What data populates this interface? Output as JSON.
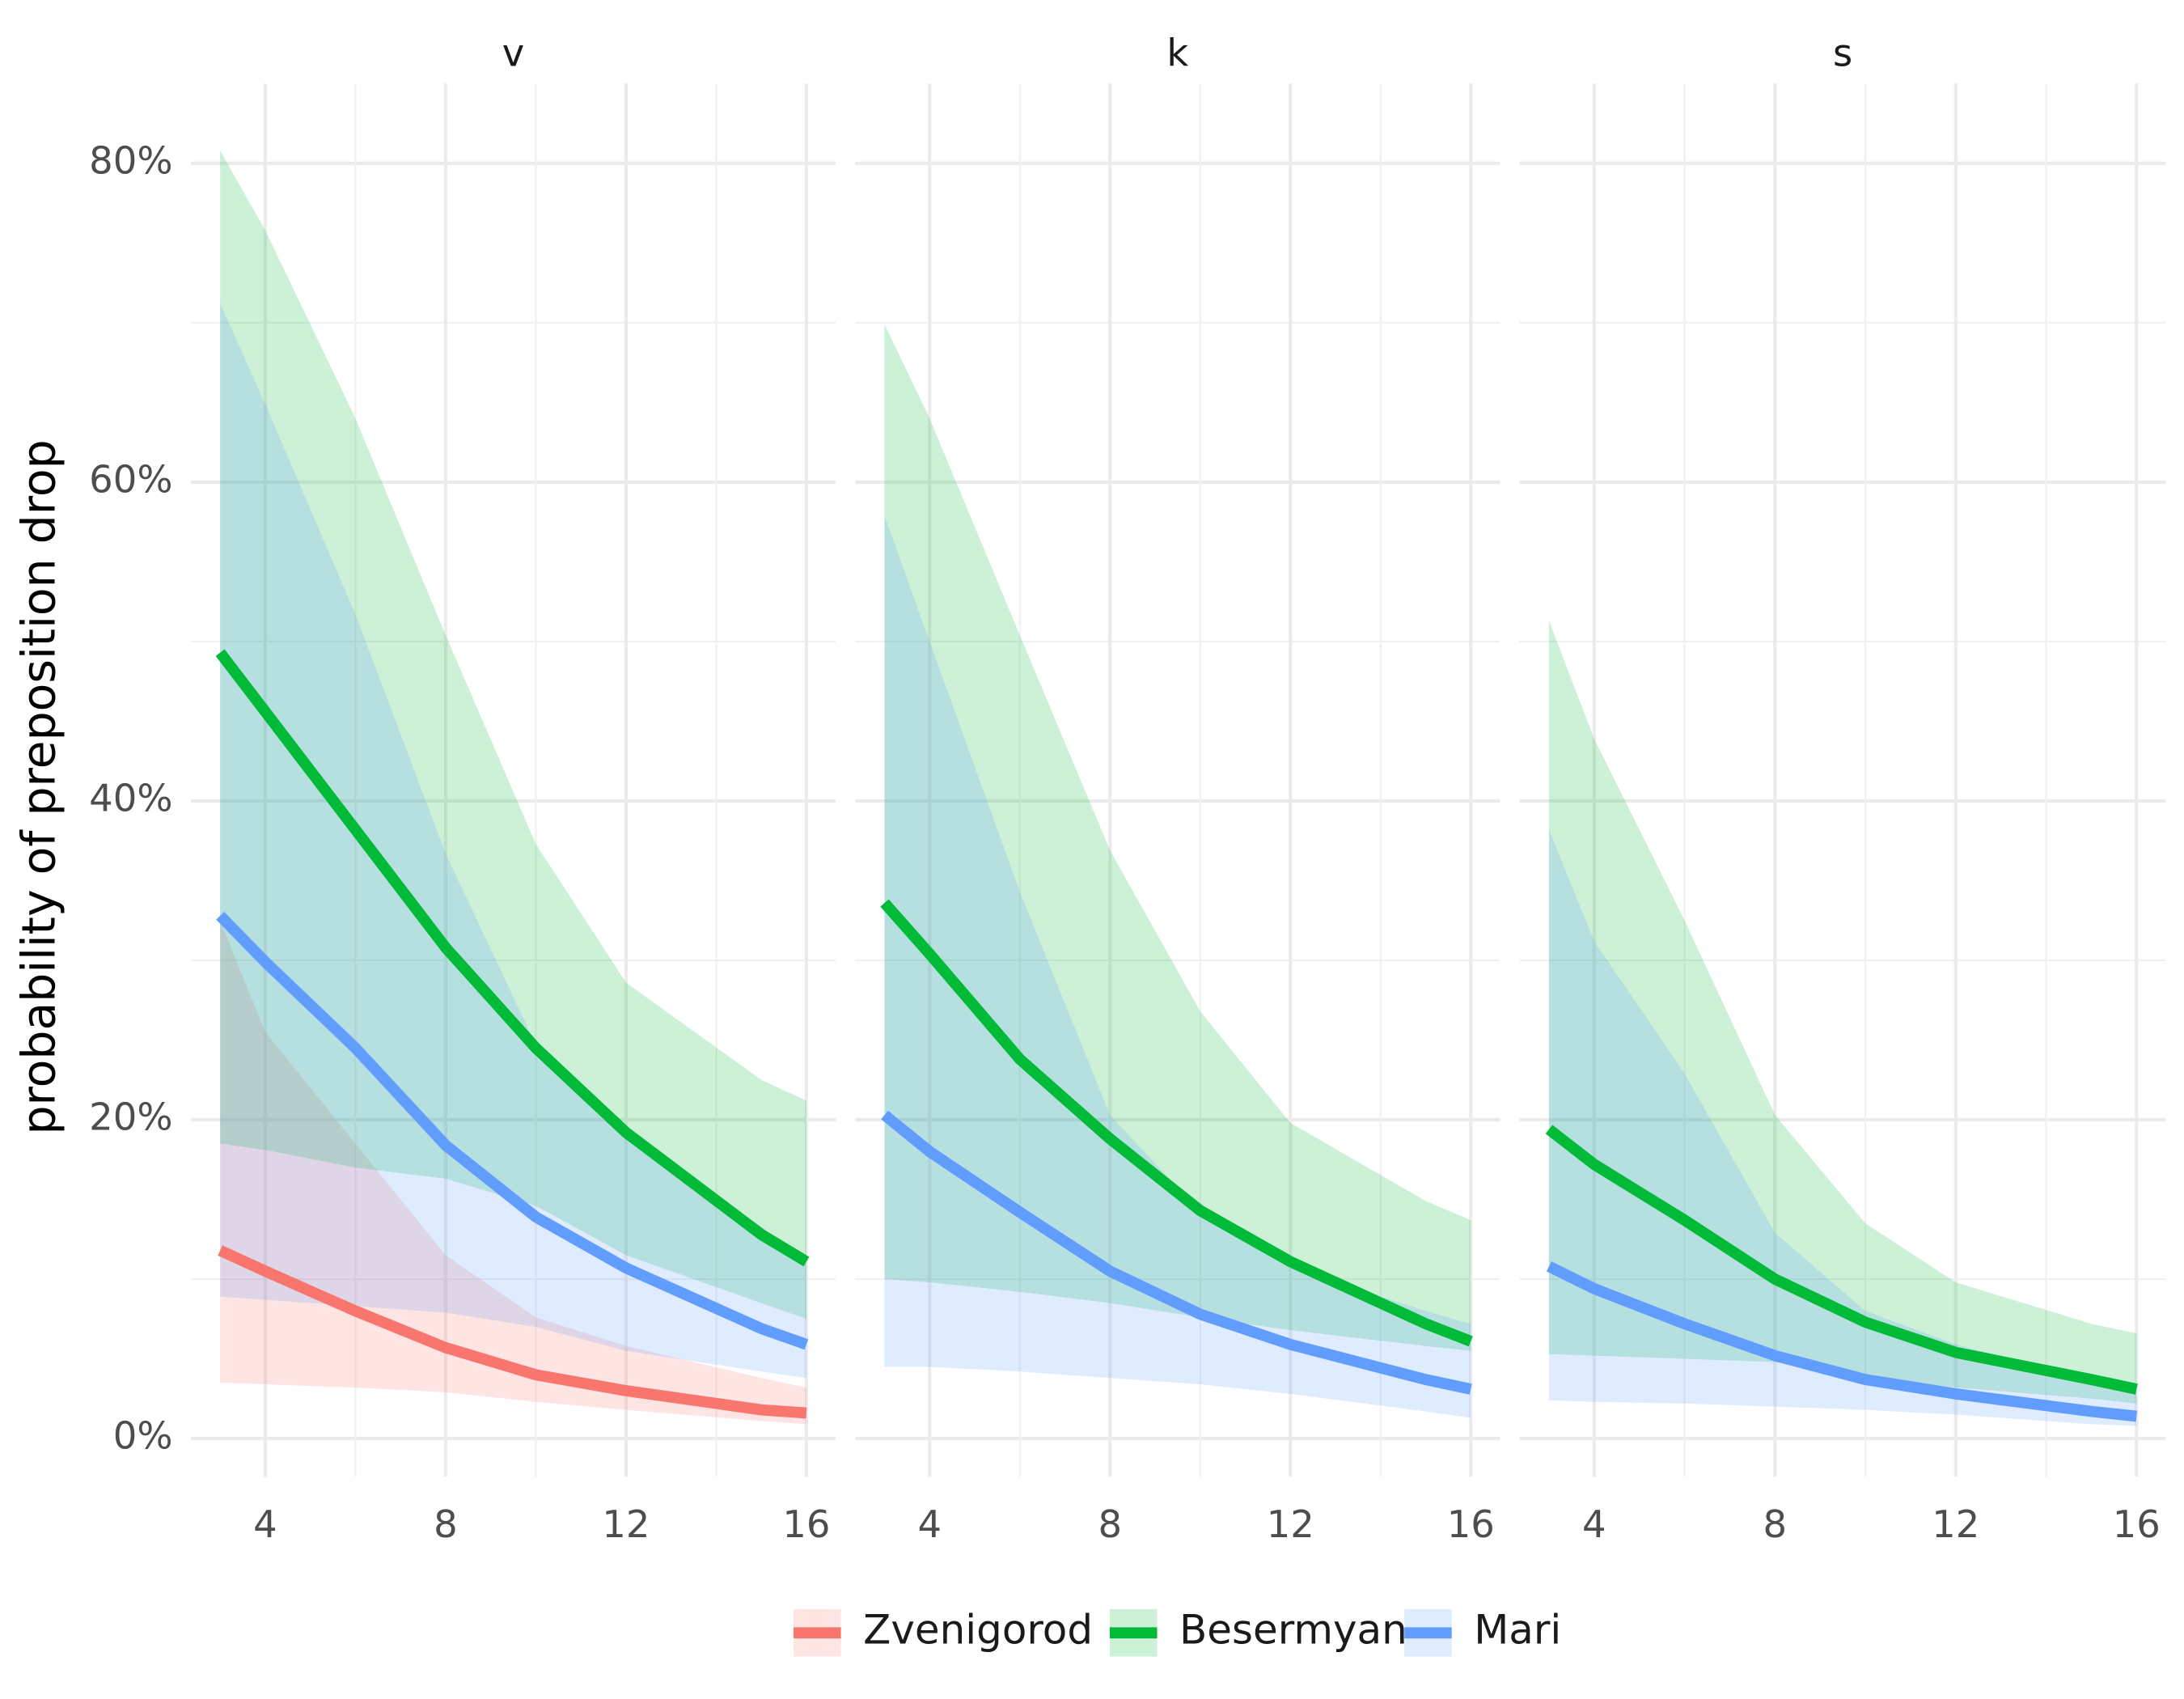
{
  "chart_data": [
    {
      "type": "line",
      "title": "v",
      "ylabel": "probability of preposition drop",
      "x": [
        3,
        4,
        6,
        8,
        10,
        12,
        15,
        16
      ],
      "xlim": [
        2.35,
        16.65
      ],
      "xticks": [
        4,
        8,
        12,
        16
      ],
      "xminor": [
        6,
        10,
        14
      ],
      "ylim": [
        -2.4,
        85
      ],
      "yticks": [
        {
          "value": 0,
          "label": "0%"
        },
        {
          "value": 20,
          "label": "20%"
        },
        {
          "value": 40,
          "label": "40%"
        },
        {
          "value": 60,
          "label": "60%"
        },
        {
          "value": 80,
          "label": "80%"
        }
      ],
      "yminor": [
        10,
        30,
        50,
        70
      ],
      "grid": true,
      "legend": "bottom",
      "series": [
        {
          "name": "Zvenigorod",
          "color": "#F8766D",
          "values": [
            11.8,
            10.5,
            8.0,
            5.7,
            4.0,
            3.0,
            1.8,
            1.6
          ],
          "lower": [
            3.5,
            3.4,
            3.2,
            2.9,
            2.3,
            1.8,
            1.1,
            0.9
          ],
          "upper": [
            32.5,
            25.5,
            18.5,
            11.5,
            7.6,
            5.8,
            3.8,
            3.2
          ]
        },
        {
          "name": "Besermyan",
          "color": "#00BA38",
          "values": [
            49.3,
            45.6,
            38.2,
            30.8,
            24.5,
            19.2,
            12.8,
            11.1
          ],
          "lower": [
            18.5,
            18.1,
            17.0,
            16.3,
            14.6,
            11.5,
            8.5,
            7.5
          ],
          "upper": [
            80.8,
            75.8,
            64.0,
            50.4,
            37.3,
            28.6,
            22.5,
            21.2
          ]
        },
        {
          "name": "Mari",
          "color": "#619CFF",
          "values": [
            32.8,
            29.9,
            24.5,
            18.4,
            13.9,
            10.7,
            6.9,
            5.9
          ],
          "lower": [
            8.9,
            8.7,
            8.3,
            7.9,
            7.0,
            5.5,
            4.2,
            3.8
          ],
          "upper": [
            71.2,
            64.9,
            51.7,
            36.7,
            24.7,
            19.0,
            13.3,
            11.1
          ]
        }
      ]
    },
    {
      "type": "line",
      "title": "k",
      "x": [
        3,
        4,
        6,
        8,
        10,
        12,
        15,
        16
      ],
      "xlim": [
        2.35,
        16.65
      ],
      "xticks": [
        4,
        8,
        12,
        16
      ],
      "series": [
        {
          "name": "Besermyan",
          "color": "#00BA38",
          "values": [
            33.6,
            30.4,
            23.8,
            18.8,
            14.3,
            11.1,
            7.2,
            6.1
          ],
          "lower": [
            10.0,
            9.8,
            9.2,
            8.5,
            7.6,
            6.8,
            5.8,
            5.5
          ],
          "upper": [
            69.9,
            64.0,
            50.4,
            36.9,
            26.8,
            19.8,
            14.9,
            13.7
          ]
        },
        {
          "name": "Mari",
          "color": "#619CFF",
          "values": [
            20.3,
            18.0,
            14.2,
            10.5,
            7.8,
            5.9,
            3.7,
            3.1
          ],
          "lower": [
            4.5,
            4.5,
            4.2,
            3.8,
            3.4,
            2.8,
            1.7,
            1.3
          ],
          "upper": [
            57.9,
            50.0,
            34.3,
            20.3,
            14.2,
            10.7,
            8.0,
            7.2
          ]
        }
      ]
    },
    {
      "type": "line",
      "title": "s",
      "x": [
        3,
        4,
        6,
        8,
        10,
        12,
        15,
        16
      ],
      "xlim": [
        2.35,
        16.65
      ],
      "xticks": [
        4,
        8,
        12,
        16
      ],
      "series": [
        {
          "name": "Besermyan",
          "color": "#00BA38",
          "values": [
            19.4,
            17.2,
            13.7,
            10.0,
            7.3,
            5.4,
            3.7,
            3.1
          ],
          "lower": [
            5.3,
            5.2,
            5.0,
            4.8,
            3.9,
            3.2,
            2.5,
            2.2
          ],
          "upper": [
            51.3,
            43.9,
            32.5,
            20.3,
            13.5,
            9.8,
            7.2,
            6.6
          ]
        },
        {
          "name": "Mari",
          "color": "#619CFF",
          "values": [
            10.8,
            9.4,
            7.2,
            5.2,
            3.7,
            2.8,
            1.7,
            1.4
          ],
          "lower": [
            2.4,
            2.3,
            2.2,
            2.0,
            1.8,
            1.5,
            0.9,
            0.8
          ],
          "upper": [
            38.2,
            31.2,
            22.9,
            12.9,
            8.0,
            5.9,
            3.7,
            3.2
          ]
        }
      ]
    }
  ]
}
